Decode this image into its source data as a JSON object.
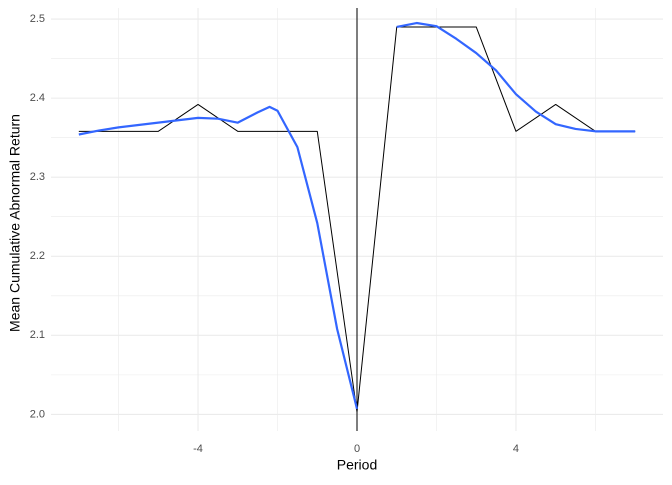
{
  "chart_data": {
    "type": "line",
    "xlabel": "Period",
    "ylabel": "Mean Cumulative Abnormal Return",
    "xlim": [
      -7.7,
      7.7
    ],
    "ylim": [
      1.979,
      2.514
    ],
    "xticks": [
      -4,
      0,
      4
    ],
    "yticks": [
      {
        "value": 2.0,
        "label": "2.0"
      },
      {
        "value": 2.1,
        "label": "2.1"
      },
      {
        "value": 2.2,
        "label": "2.2"
      },
      {
        "value": 2.3,
        "label": "2.3"
      },
      {
        "value": 2.4,
        "label": "2.4"
      },
      {
        "value": 2.5,
        "label": "2.5"
      }
    ],
    "grid": true,
    "vline": 0,
    "vline_color": "#000000",
    "series": [
      {
        "color": "#000000",
        "width": 1,
        "x": [
          -7,
          -6,
          -5,
          -4,
          -3,
          -2,
          -1,
          0,
          1,
          2,
          3,
          4,
          5,
          6,
          7
        ],
        "values": [
          2.358,
          2.358,
          2.358,
          2.392,
          2.358,
          2.358,
          2.358,
          2.003,
          2.49,
          2.49,
          2.49,
          2.358,
          2.392,
          2.358,
          2.358
        ]
      },
      {
        "color": "#3366FF",
        "width": 2.2,
        "x": [
          -7,
          -6.5,
          -6,
          -5.5,
          -5,
          -4.5,
          -4,
          -3.5,
          -3,
          -2.5,
          -2.2,
          -2,
          -1.5,
          -1,
          -0.5,
          0,
          0.5,
          1,
          1.5,
          2,
          2.5,
          3,
          3.5,
          4,
          4.5,
          5,
          5.5,
          6,
          6.5,
          7
        ],
        "values": [
          2.354,
          2.359,
          2.363,
          2.366,
          2.369,
          2.372,
          2.375,
          2.374,
          2.369,
          2.382,
          2.389,
          2.384,
          2.338,
          2.242,
          2.108,
          2.007,
          null,
          2.49,
          2.495,
          2.491,
          2.475,
          2.457,
          2.435,
          2.405,
          2.383,
          2.367,
          2.361,
          2.358,
          2.358,
          2.358
        ]
      }
    ]
  }
}
